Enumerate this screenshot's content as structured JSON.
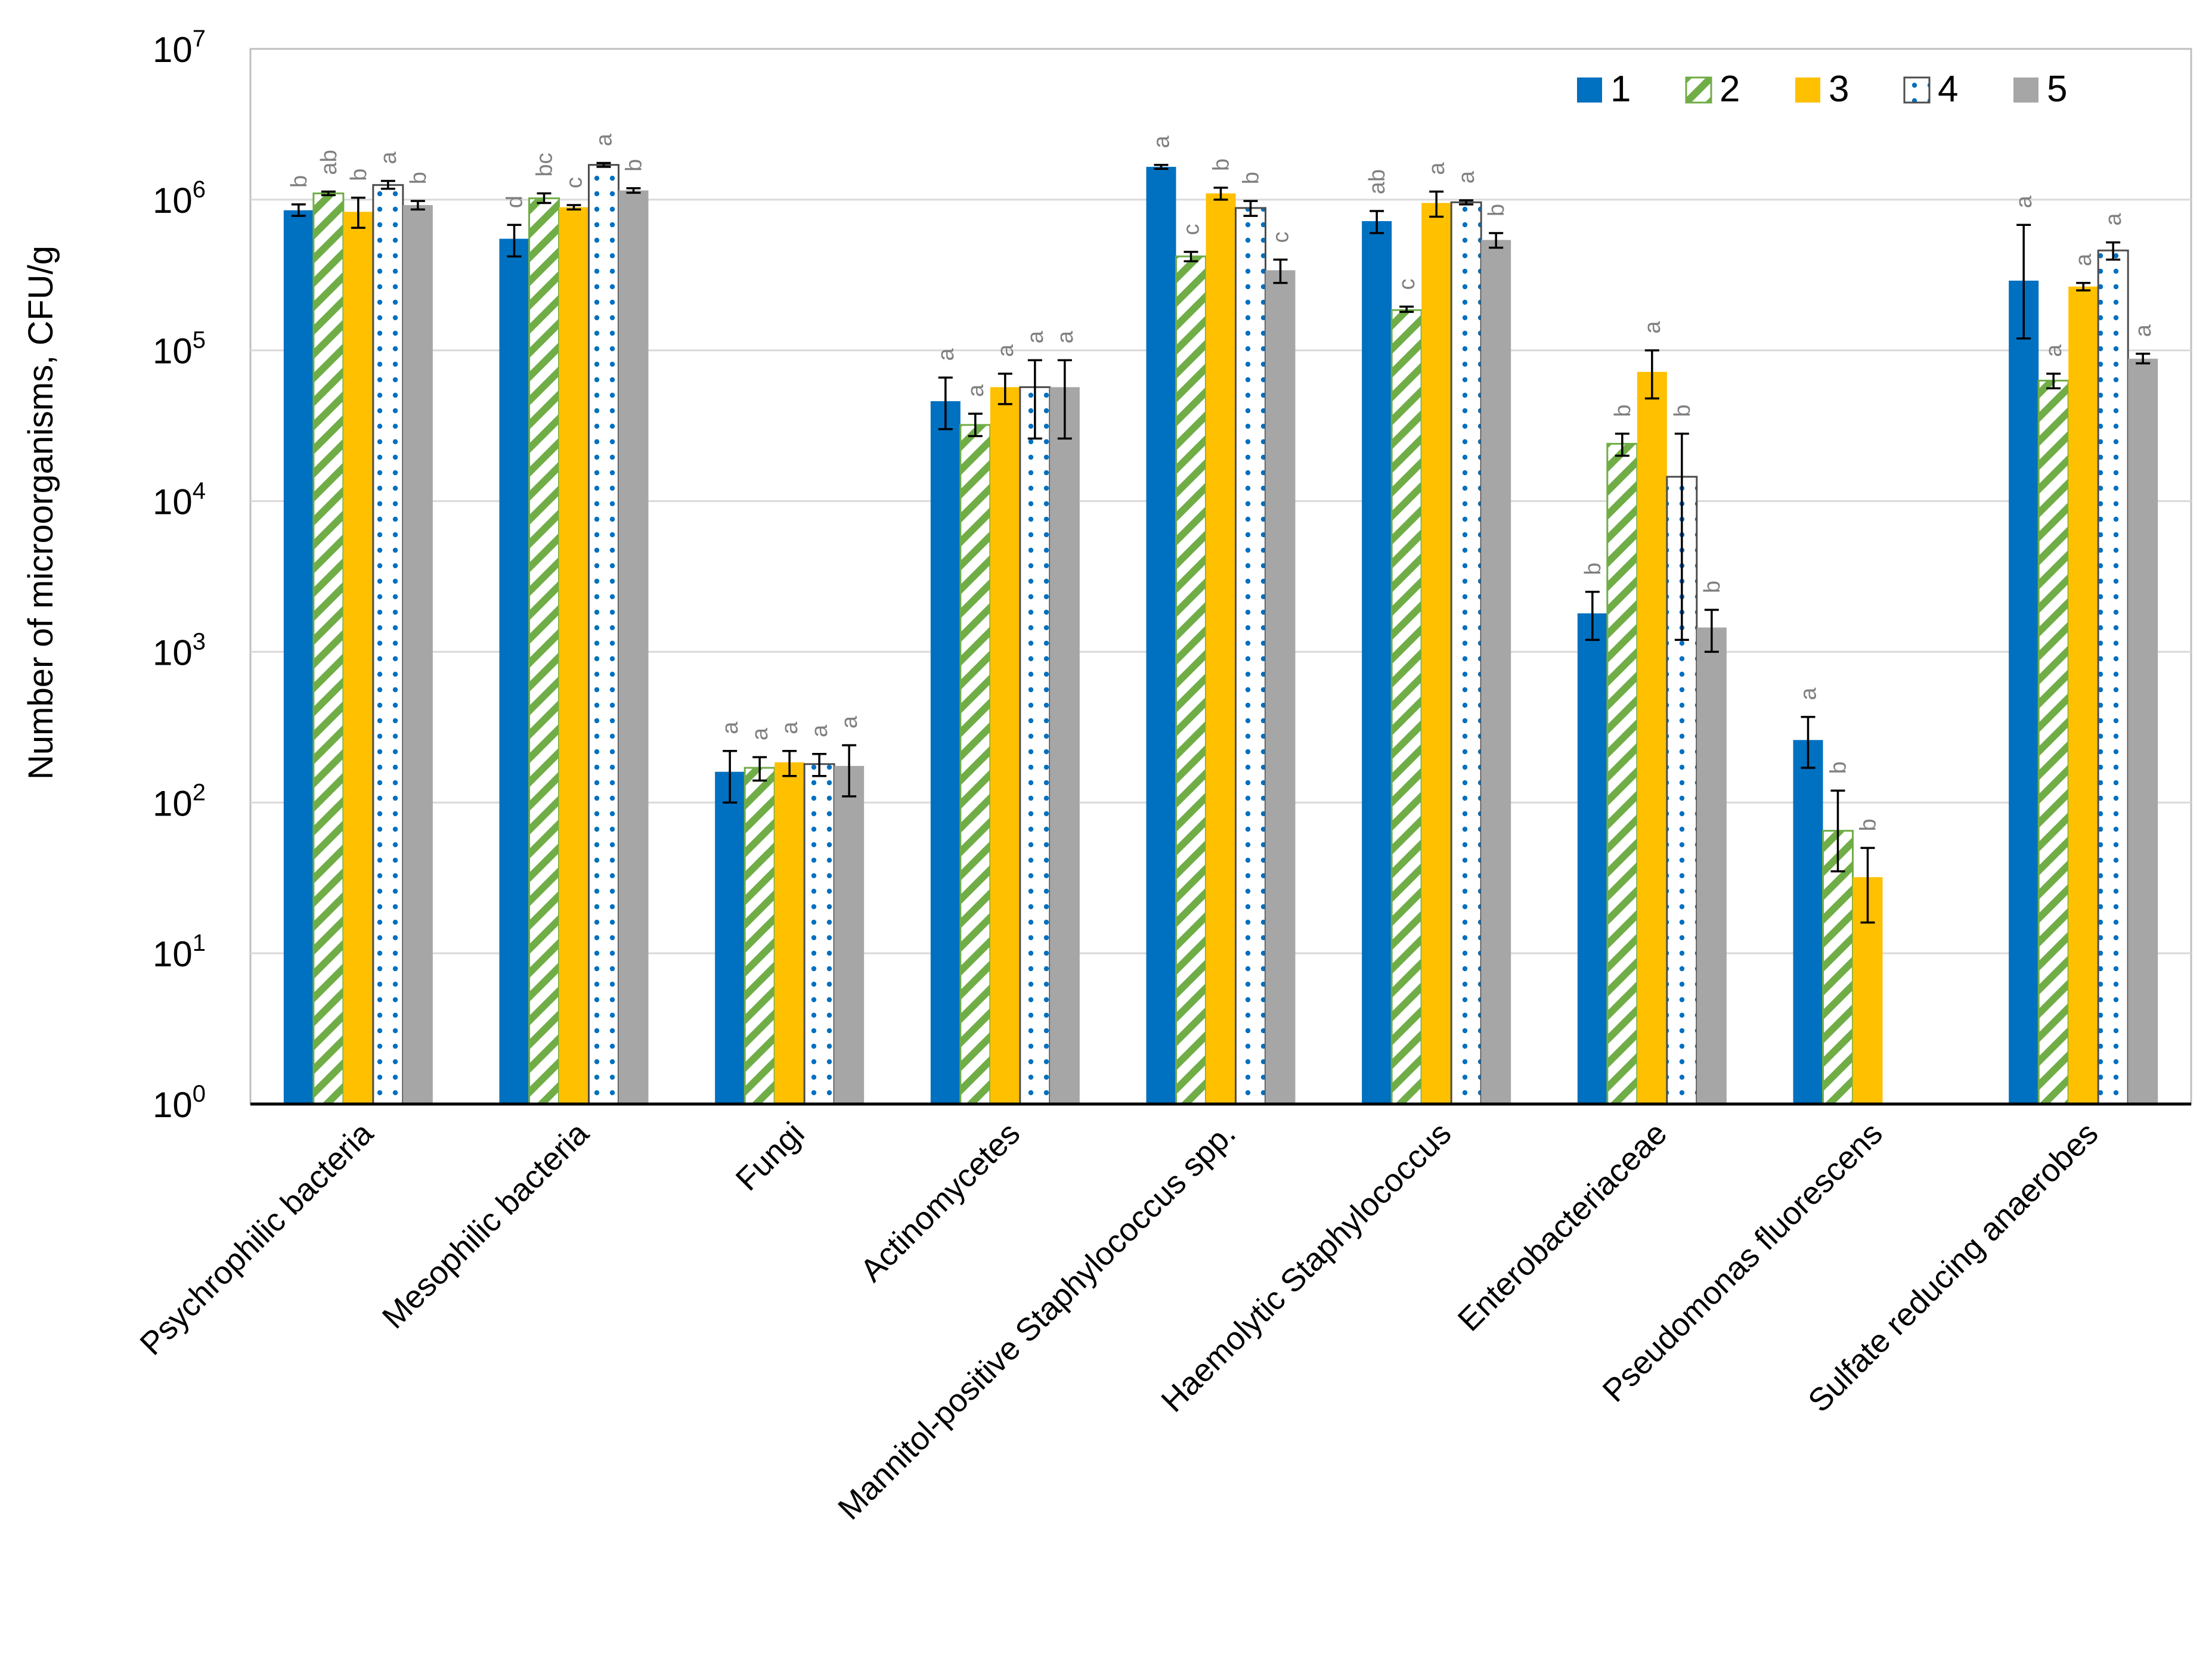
{
  "chart_data": {
    "type": "bar",
    "ylabel": "Number of microorganisms, CFU/g",
    "yscale": "log",
    "ylim": [
      1,
      10000000
    ],
    "y_ticks": [
      {
        "base": "10",
        "exp": "0"
      },
      {
        "base": "10",
        "exp": "1"
      },
      {
        "base": "10",
        "exp": "2"
      },
      {
        "base": "10",
        "exp": "3"
      },
      {
        "base": "10",
        "exp": "4"
      },
      {
        "base": "10",
        "exp": "5"
      },
      {
        "base": "10",
        "exp": "6"
      },
      {
        "base": "10",
        "exp": "7"
      }
    ],
    "grid": true,
    "legend_position": "top-right",
    "categories": [
      "Psychrophilic bacteria",
      "Mesophilic bacteria",
      "Fungi",
      "Actinomycetes",
      "Mannitol-positive Staphylococcus spp.",
      "Haemolytic Staphylococcus",
      "Enterobacteriaceae",
      "Pseudomonas fluorescens",
      "Sulfate reducing anaerobes"
    ],
    "series": [
      {
        "name": "1",
        "color": "#0070c0",
        "pattern": "solid",
        "values": [
          850000,
          550000,
          160,
          46000,
          1650000,
          720000,
          1800,
          260,
          290000
        ],
        "error": [
          [
            780000,
            930000
          ],
          [
            420000,
            680000
          ],
          [
            100,
            220
          ],
          [
            30000,
            66000
          ],
          [
            1600000,
            1700000
          ],
          [
            600000,
            840000
          ],
          [
            1200,
            2500
          ],
          [
            170,
            370
          ],
          [
            120000,
            680000
          ]
        ],
        "letters": [
          "b",
          "d",
          "a",
          "a",
          "a",
          "ab",
          "b",
          "a",
          "a"
        ]
      },
      {
        "name": "2",
        "color": "#70ad47",
        "pattern": "diagonal-stripes",
        "values": [
          1100000,
          1020000,
          170,
          32000,
          420000,
          185000,
          24000,
          65,
          63000
        ],
        "error": [
          [
            1070000,
            1130000
          ],
          [
            950000,
            1100000
          ],
          [
            140,
            200
          ],
          [
            27000,
            38000
          ],
          [
            390000,
            450000
          ],
          [
            180000,
            195000
          ],
          [
            20000,
            28000
          ],
          [
            35,
            120
          ],
          [
            56000,
            70000
          ]
        ],
        "letters": [
          "ab",
          "bc",
          "a",
          "a",
          "c",
          "c",
          "b",
          "b",
          "a"
        ]
      },
      {
        "name": "3",
        "color": "#ffc000",
        "pattern": "solid",
        "values": [
          830000,
          890000,
          185,
          57000,
          1100000,
          950000,
          72000,
          32,
          265000
        ],
        "error": [
          [
            650000,
            1030000
          ],
          [
            860000,
            920000
          ],
          [
            150,
            220
          ],
          [
            44000,
            70000
          ],
          [
            1000000,
            1200000
          ],
          [
            770000,
            1130000
          ],
          [
            48000,
            100000
          ],
          [
            16,
            50
          ],
          [
            250000,
            280000
          ]
        ],
        "letters": [
          "b",
          "c",
          "a",
          "a",
          "b",
          "a",
          "a",
          "b",
          "a"
        ]
      },
      {
        "name": "4",
        "color": "#0070c0",
        "pattern": "dots",
        "values": [
          1250000,
          1700000,
          180,
          57000,
          880000,
          960000,
          14500,
          null,
          460000
        ],
        "error": [
          [
            1180000,
            1330000
          ],
          [
            1650000,
            1750000
          ],
          [
            150,
            210
          ],
          [
            26000,
            86000
          ],
          [
            780000,
            980000
          ],
          [
            930000,
            990000
          ],
          [
            1200,
            28000
          ],
          null,
          [
            400000,
            520000
          ]
        ],
        "letters": [
          "a",
          "a",
          "a",
          "a",
          "b",
          "a",
          "b",
          "",
          "a"
        ]
      },
      {
        "name": "5",
        "color": "#a6a6a6",
        "pattern": "solid",
        "values": [
          920000,
          1150000,
          175,
          57000,
          340000,
          540000,
          1450,
          null,
          88000
        ],
        "error": [
          [
            860000,
            980000
          ],
          [
            1110000,
            1190000
          ],
          [
            110,
            240
          ],
          [
            26000,
            86000
          ],
          [
            280000,
            400000
          ],
          [
            480000,
            600000
          ],
          [
            1000,
            1900
          ],
          null,
          [
            82000,
            95000
          ]
        ],
        "letters": [
          "b",
          "b",
          "a",
          "a",
          "c",
          "b",
          "b",
          "",
          "a"
        ]
      }
    ]
  }
}
